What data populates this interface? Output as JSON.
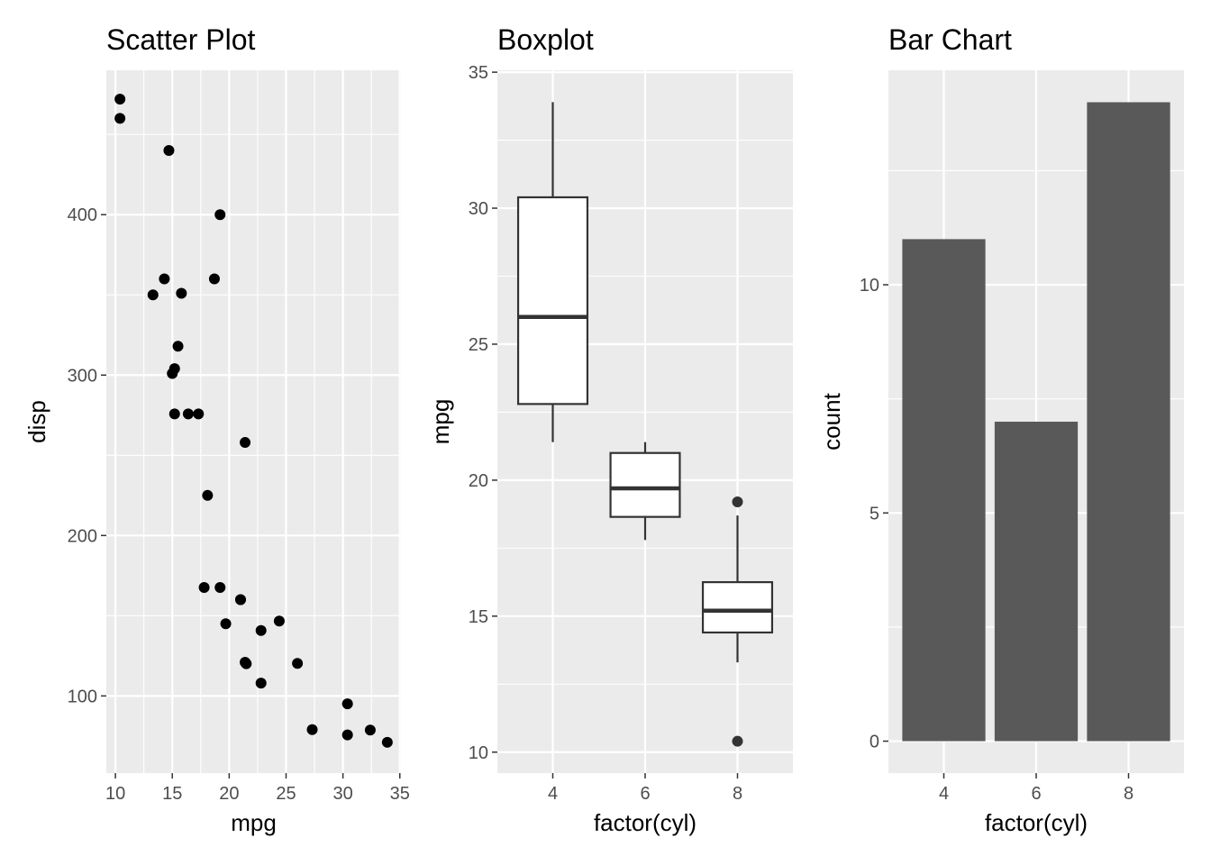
{
  "chart_data": [
    {
      "type": "scatter",
      "title": "Scatter Plot",
      "xlabel": "mpg",
      "ylabel": "disp",
      "xlim": [
        9.2,
        35.1
      ],
      "ylim": [
        51.9,
        490
      ],
      "xticks": [
        10,
        15,
        20,
        25,
        30,
        35
      ],
      "yticks": [
        100,
        200,
        300,
        400
      ],
      "grid": true,
      "point_color": "#000000",
      "points": [
        {
          "x": 21.0,
          "y": 160
        },
        {
          "x": 21.0,
          "y": 160
        },
        {
          "x": 22.8,
          "y": 108
        },
        {
          "x": 21.4,
          "y": 258
        },
        {
          "x": 18.7,
          "y": 360
        },
        {
          "x": 18.1,
          "y": 225
        },
        {
          "x": 14.3,
          "y": 360
        },
        {
          "x": 24.4,
          "y": 146.7
        },
        {
          "x": 22.8,
          "y": 140.8
        },
        {
          "x": 19.2,
          "y": 167.6
        },
        {
          "x": 17.8,
          "y": 167.6
        },
        {
          "x": 16.4,
          "y": 275.8
        },
        {
          "x": 17.3,
          "y": 275.8
        },
        {
          "x": 15.2,
          "y": 275.8
        },
        {
          "x": 10.4,
          "y": 472
        },
        {
          "x": 10.4,
          "y": 460
        },
        {
          "x": 14.7,
          "y": 440
        },
        {
          "x": 32.4,
          "y": 78.7
        },
        {
          "x": 30.4,
          "y": 75.7
        },
        {
          "x": 33.9,
          "y": 71.1
        },
        {
          "x": 21.5,
          "y": 120.1
        },
        {
          "x": 15.5,
          "y": 318
        },
        {
          "x": 15.2,
          "y": 304
        },
        {
          "x": 13.3,
          "y": 350
        },
        {
          "x": 19.2,
          "y": 400
        },
        {
          "x": 27.3,
          "y": 79
        },
        {
          "x": 26.0,
          "y": 120.3
        },
        {
          "x": 30.4,
          "y": 95.1
        },
        {
          "x": 15.8,
          "y": 351
        },
        {
          "x": 19.7,
          "y": 145
        },
        {
          "x": 15.0,
          "y": 301
        },
        {
          "x": 21.4,
          "y": 121
        }
      ]
    },
    {
      "type": "box",
      "title": "Boxplot",
      "xlabel": "factor(cyl)",
      "ylabel": "mpg",
      "ylim": [
        9.23,
        35.07
      ],
      "yticks": [
        10,
        15,
        20,
        25,
        30,
        35
      ],
      "grid": true,
      "categories": [
        "4",
        "6",
        "8"
      ],
      "boxes": [
        {
          "category": "4",
          "whisker_low": 21.4,
          "q1": 22.8,
          "median": 26.0,
          "q3": 30.4,
          "whisker_high": 33.9,
          "outliers": []
        },
        {
          "category": "6",
          "whisker_low": 17.8,
          "q1": 18.65,
          "median": 19.7,
          "q3": 21.0,
          "whisker_high": 21.4,
          "outliers": []
        },
        {
          "category": "8",
          "whisker_low": 13.3,
          "q1": 14.4,
          "median": 15.2,
          "q3": 16.25,
          "whisker_high": 18.7,
          "outliers": [
            10.4,
            19.2
          ]
        }
      ]
    },
    {
      "type": "bar",
      "title": "Bar Chart",
      "xlabel": "factor(cyl)",
      "ylabel": "count",
      "ylim": [
        -0.7,
        14.7
      ],
      "yticks": [
        0,
        5,
        10
      ],
      "grid": true,
      "bar_color": "#595959",
      "categories": [
        "4",
        "6",
        "8"
      ],
      "values": [
        11,
        7,
        14
      ]
    }
  ]
}
